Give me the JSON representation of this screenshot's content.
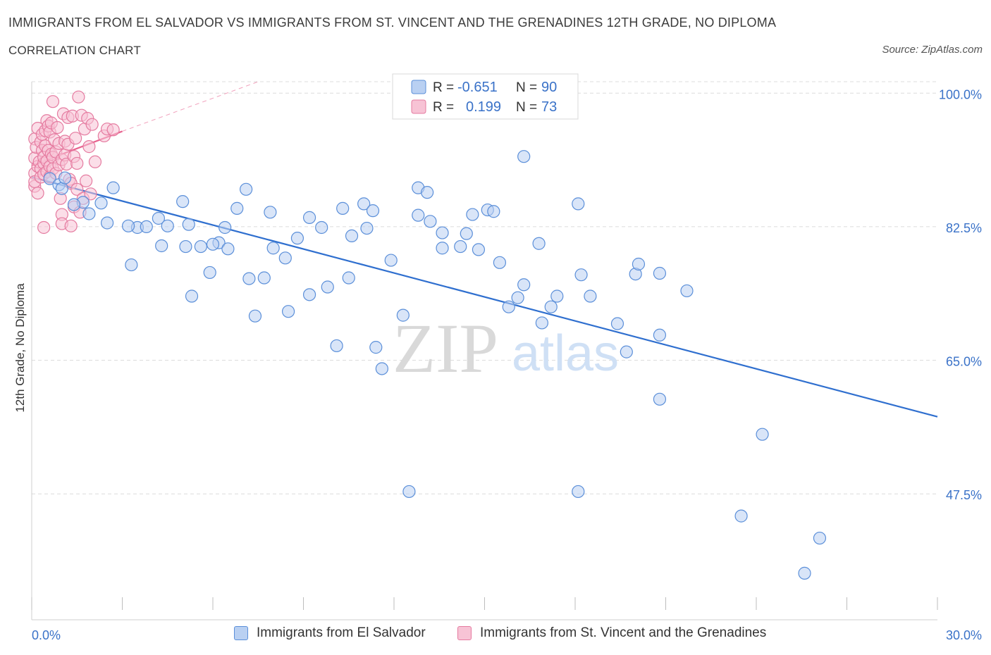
{
  "header": {
    "title": "IMMIGRANTS FROM EL SALVADOR VS IMMIGRANTS FROM ST. VINCENT AND THE GRENADINES 12TH GRADE, NO DIPLOMA",
    "subtitle": "CORRELATION CHART",
    "source": "Source: ZipAtlas.com"
  },
  "watermark": {
    "zip": "ZIP",
    "atlas": "atlas"
  },
  "colors": {
    "blue": "#5b8fd9",
    "blue_fill": "#b9d0f2",
    "blue_line": "#2f6fcf",
    "pink": "#e57ba0",
    "pink_fill": "#f7c3d5",
    "pink_line": "#e8638f",
    "axis_label": "#3a72c8",
    "grid": "#dcdcdc"
  },
  "legend_box": {
    "rows": [
      {
        "r_label": "R =",
        "r_value": "-0.651",
        "n_label": "N =",
        "n_value": "90"
      },
      {
        "r_label": "R =",
        "r_value": "0.199",
        "n_label": "N =",
        "n_value": "73"
      }
    ]
  },
  "legend_bottom": {
    "items": [
      "Immigrants from El Salvador",
      "Immigrants from St. Vincent and the Grenadines"
    ]
  },
  "chart_data": {
    "type": "scatter",
    "title": "IMMIGRANTS FROM EL SALVADOR VS IMMIGRANTS FROM ST. VINCENT AND THE GRENADINES 12TH GRADE, NO DIPLOMA",
    "xlabel": "",
    "ylabel": "12th Grade, No Diploma",
    "xlim": [
      0,
      30
    ],
    "ylim": [
      31,
      101.5
    ],
    "x_tick_labels": [
      "0.0%",
      "30.0%"
    ],
    "y_ticks": [
      100,
      82.5,
      65,
      47.5
    ],
    "y_tick_labels": [
      "100.0%",
      "82.5%",
      "65.0%",
      "47.5%"
    ],
    "grid": true,
    "legend_position": "top-center",
    "series": [
      {
        "name": "Immigrants from El Salvador",
        "R": -0.651,
        "N": 90,
        "trend": {
          "x": [
            0,
            30
          ],
          "y": [
            89.0,
            57.6
          ]
        },
        "points": [
          [
            0.6,
            88.8
          ],
          [
            0.9,
            88.0
          ],
          [
            1.0,
            87.5
          ],
          [
            1.1,
            88.9
          ],
          [
            2.7,
            87.6
          ],
          [
            1.7,
            85.7
          ],
          [
            2.3,
            85.6
          ],
          [
            1.4,
            85.4
          ],
          [
            1.9,
            84.2
          ],
          [
            2.5,
            83.0
          ],
          [
            3.5,
            82.4
          ],
          [
            3.2,
            82.6
          ],
          [
            3.8,
            82.5
          ],
          [
            4.2,
            83.6
          ],
          [
            4.3,
            80.0
          ],
          [
            4.5,
            82.6
          ],
          [
            5.0,
            85.8
          ],
          [
            5.2,
            82.8
          ],
          [
            3.3,
            77.5
          ],
          [
            5.1,
            79.9
          ],
          [
            5.6,
            79.9
          ],
          [
            5.9,
            76.5
          ],
          [
            5.3,
            73.4
          ],
          [
            6.2,
            80.4
          ],
          [
            6.5,
            79.6
          ],
          [
            6.8,
            84.9
          ],
          [
            6.0,
            80.2
          ],
          [
            6.4,
            82.4
          ],
          [
            7.2,
            75.7
          ],
          [
            7.1,
            87.4
          ],
          [
            7.7,
            75.8
          ],
          [
            7.4,
            70.8
          ],
          [
            7.9,
            84.4
          ],
          [
            8.0,
            79.7
          ],
          [
            8.4,
            78.4
          ],
          [
            8.5,
            71.4
          ],
          [
            8.8,
            81.0
          ],
          [
            9.2,
            73.6
          ],
          [
            9.2,
            83.7
          ],
          [
            9.6,
            82.4
          ],
          [
            9.8,
            74.6
          ],
          [
            10.1,
            66.9
          ],
          [
            10.3,
            84.9
          ],
          [
            10.5,
            75.8
          ],
          [
            10.6,
            81.3
          ],
          [
            11.0,
            85.5
          ],
          [
            11.1,
            82.3
          ],
          [
            11.3,
            84.6
          ],
          [
            11.4,
            66.7
          ],
          [
            11.6,
            63.9
          ],
          [
            11.9,
            78.1
          ],
          [
            12.3,
            70.9
          ],
          [
            12.8,
            84.0
          ],
          [
            12.8,
            87.6
          ],
          [
            13.1,
            87.0
          ],
          [
            13.2,
            83.2
          ],
          [
            13.6,
            81.7
          ],
          [
            13.6,
            79.7
          ],
          [
            14.2,
            79.9
          ],
          [
            14.4,
            81.6
          ],
          [
            14.6,
            84.1
          ],
          [
            14.8,
            79.5
          ],
          [
            15.1,
            84.7
          ],
          [
            15.3,
            84.5
          ],
          [
            15.5,
            77.8
          ],
          [
            15.8,
            72.0
          ],
          [
            16.1,
            73.2
          ],
          [
            16.3,
            74.9
          ],
          [
            16.8,
            80.3
          ],
          [
            16.9,
            69.9
          ],
          [
            17.2,
            72.0
          ],
          [
            17.4,
            73.4
          ],
          [
            16.3,
            91.7
          ],
          [
            18.1,
            85.5
          ],
          [
            18.2,
            76.2
          ],
          [
            18.5,
            73.4
          ],
          [
            12.5,
            47.8
          ],
          [
            18.1,
            47.8
          ],
          [
            19.4,
            69.8
          ],
          [
            19.7,
            66.1
          ],
          [
            20.0,
            76.3
          ],
          [
            20.1,
            77.6
          ],
          [
            20.8,
            76.4
          ],
          [
            20.8,
            68.3
          ],
          [
            21.7,
            74.1
          ],
          [
            20.8,
            59.9
          ],
          [
            24.2,
            55.3
          ],
          [
            23.5,
            44.6
          ],
          [
            26.1,
            41.7
          ],
          [
            25.6,
            37.1
          ]
        ]
      },
      {
        "name": "Immigrants from St. Vincent and the Grenadines",
        "R": 0.199,
        "N": 73,
        "trend": {
          "x": [
            0,
            3.0
          ],
          "y": [
            90.5,
            95.0
          ],
          "extension": {
            "x": [
              3.0,
              7.5
            ],
            "y": [
              95.0,
              101.5
            ]
          }
        },
        "points": [
          [
            0.1,
            89.5
          ],
          [
            0.1,
            91.5
          ],
          [
            0.1,
            94.0
          ],
          [
            0.1,
            87.8
          ],
          [
            0.1,
            88.4
          ],
          [
            0.15,
            92.9
          ],
          [
            0.2,
            90.4
          ],
          [
            0.2,
            86.9
          ],
          [
            0.2,
            95.4
          ],
          [
            0.25,
            91.0
          ],
          [
            0.3,
            93.6
          ],
          [
            0.3,
            90.1
          ],
          [
            0.3,
            89.0
          ],
          [
            0.35,
            92.5
          ],
          [
            0.35,
            94.6
          ],
          [
            0.4,
            90.8
          ],
          [
            0.4,
            89.4
          ],
          [
            0.4,
            91.6
          ],
          [
            0.45,
            95.1
          ],
          [
            0.45,
            93.1
          ],
          [
            0.5,
            96.4
          ],
          [
            0.5,
            91.1
          ],
          [
            0.5,
            89.7
          ],
          [
            0.55,
            95.7
          ],
          [
            0.55,
            92.5
          ],
          [
            0.6,
            94.9
          ],
          [
            0.6,
            90.4
          ],
          [
            0.6,
            89.0
          ],
          [
            0.65,
            96.1
          ],
          [
            0.65,
            92.0
          ],
          [
            0.7,
            98.9
          ],
          [
            0.7,
            91.6
          ],
          [
            0.7,
            90.1
          ],
          [
            0.75,
            93.9
          ],
          [
            0.8,
            92.3
          ],
          [
            0.8,
            89.5
          ],
          [
            0.85,
            95.5
          ],
          [
            0.9,
            93.4
          ],
          [
            0.9,
            90.6
          ],
          [
            0.95,
            86.2
          ],
          [
            1.0,
            91.3
          ],
          [
            1.0,
            84.1
          ],
          [
            1.05,
            97.3
          ],
          [
            1.1,
            91.9
          ],
          [
            1.1,
            93.7
          ],
          [
            1.15,
            90.7
          ],
          [
            1.2,
            96.8
          ],
          [
            1.2,
            93.3
          ],
          [
            1.25,
            88.7
          ],
          [
            1.3,
            88.2
          ],
          [
            1.35,
            97.0
          ],
          [
            1.4,
            91.7
          ],
          [
            1.4,
            85.1
          ],
          [
            1.45,
            94.1
          ],
          [
            1.5,
            90.8
          ],
          [
            1.5,
            87.4
          ],
          [
            1.55,
            99.5
          ],
          [
            1.6,
            84.4
          ],
          [
            1.65,
            97.1
          ],
          [
            1.7,
            86.2
          ],
          [
            1.75,
            95.3
          ],
          [
            1.8,
            88.5
          ],
          [
            1.85,
            96.7
          ],
          [
            1.9,
            93.0
          ],
          [
            1.95,
            86.8
          ],
          [
            2.0,
            95.9
          ],
          [
            2.1,
            91.0
          ],
          [
            2.4,
            94.4
          ],
          [
            2.5,
            95.3
          ],
          [
            2.7,
            95.2
          ],
          [
            1.0,
            82.9
          ],
          [
            0.4,
            82.4
          ],
          [
            1.3,
            82.6
          ]
        ]
      }
    ]
  }
}
